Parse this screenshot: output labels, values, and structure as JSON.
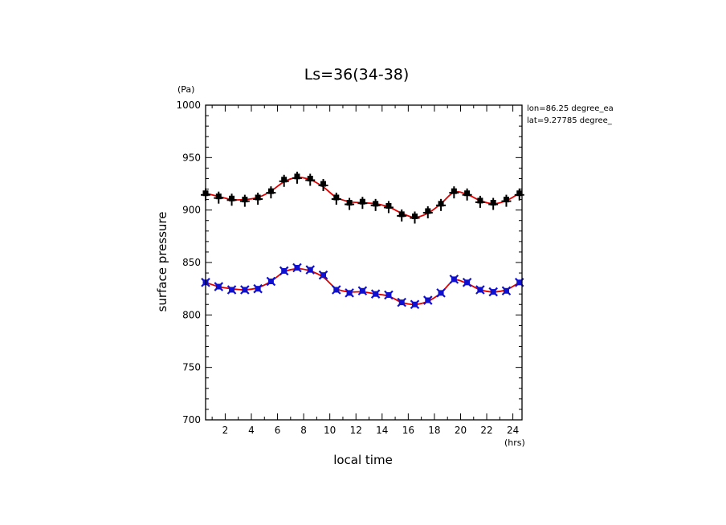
{
  "chart_data": {
    "type": "scatter",
    "title": "Ls=36(34-38)",
    "xlabel": "local time",
    "ylabel": "surface pressure",
    "x_unit": "(hrs)",
    "y_unit": "(Pa)",
    "xlim": [
      0.5,
      24.7
    ],
    "ylim": [
      700,
      1000
    ],
    "xticks": [
      2,
      4,
      6,
      8,
      10,
      12,
      14,
      16,
      18,
      20,
      22,
      24
    ],
    "yticks": [
      700,
      750,
      800,
      850,
      900,
      950,
      1000
    ],
    "info_lines": [
      "lon=86.25 degree_ea",
      "lat=9.27785 degree_"
    ],
    "colors": {
      "series_upper": "#000000",
      "series_lower": "#1010d0",
      "fit": "#e00000"
    },
    "x": [
      0.5,
      1.5,
      2.5,
      3.5,
      4.5,
      5.5,
      6.5,
      7.5,
      8.5,
      9.5,
      10.5,
      11.5,
      12.5,
      13.5,
      14.5,
      15.5,
      16.5,
      17.5,
      18.5,
      19.5,
      20.5,
      21.5,
      22.5,
      23.5,
      24.5
    ],
    "series": [
      {
        "marker": "plus",
        "values": [
          916,
          913,
          911,
          910,
          912,
          918,
          929,
          932,
          930,
          925,
          912,
          907,
          908,
          906,
          904,
          896,
          894,
          899,
          906,
          918,
          916,
          909,
          907,
          910,
          916
        ],
        "fit": [
          916,
          913,
          910,
          910,
          912,
          918,
          927,
          931,
          929,
          922,
          912,
          908,
          907,
          906,
          903,
          897,
          893,
          897,
          906,
          917,
          915,
          909,
          906,
          909,
          916
        ]
      },
      {
        "marker": "cross",
        "values": [
          831,
          827,
          824,
          824,
          825,
          832,
          842,
          845,
          843,
          838,
          824,
          821,
          823,
          820,
          819,
          812,
          810,
          814,
          821,
          834,
          831,
          824,
          822,
          823,
          831
        ],
        "fit": [
          831,
          827,
          825,
          824,
          826,
          832,
          841,
          844,
          842,
          836,
          825,
          822,
          822,
          820,
          818,
          812,
          810,
          813,
          821,
          833,
          830,
          824,
          822,
          824,
          831
        ]
      }
    ]
  }
}
